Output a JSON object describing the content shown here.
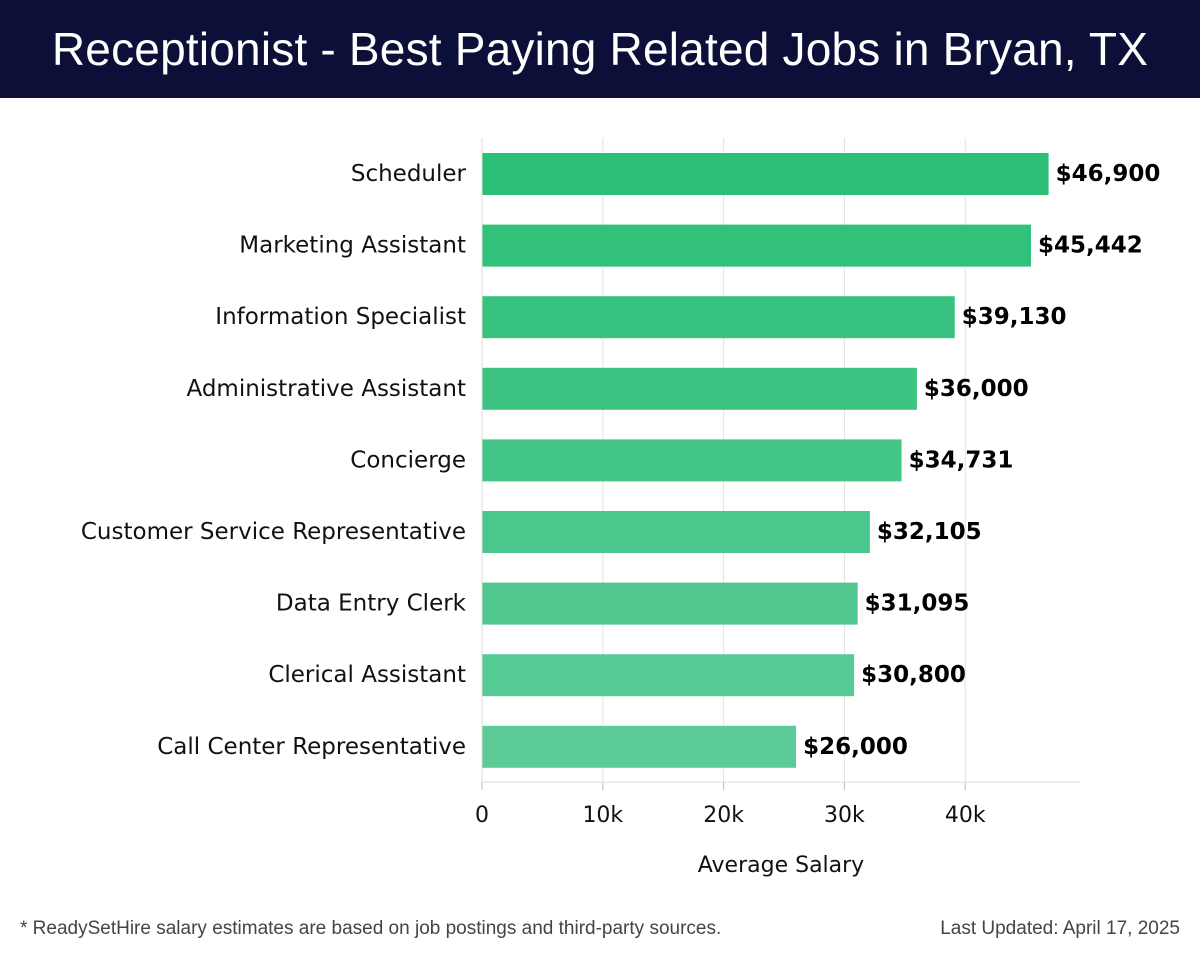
{
  "header": {
    "title": "Receptionist - Best Paying Related Jobs in Bryan, TX"
  },
  "chart_data": {
    "type": "bar",
    "orientation": "horizontal",
    "title": "Receptionist - Best Paying Related Jobs in Bryan, TX",
    "xlabel": "Average Salary",
    "ylabel": "",
    "categories": [
      "Scheduler",
      "Marketing Assistant",
      "Information Specialist",
      "Administrative Assistant",
      "Concierge",
      "Customer Service Representative",
      "Data Entry Clerk",
      "Clerical Assistant",
      "Call Center Representative"
    ],
    "values": [
      46900,
      45442,
      39130,
      36000,
      34731,
      32105,
      31095,
      30800,
      26000
    ],
    "value_labels": [
      "$46,900",
      "$45,442",
      "$39,130",
      "$36,000",
      "$34,731",
      "$32,105",
      "$31,095",
      "$30,800",
      "$26,000"
    ],
    "xlim": [
      0,
      49500
    ],
    "xticks": [
      0,
      10000,
      20000,
      30000,
      40000
    ],
    "xtick_labels": [
      "0",
      "10k",
      "20k",
      "30k",
      "40k"
    ],
    "grid": true,
    "bar_color_start": "#2bbf77",
    "bar_color_end": "#5ccb98"
  },
  "footer": {
    "note": "* ReadySetHire salary estimates are based on job postings and third-party sources.",
    "updated": "Last Updated: April 17, 2025"
  }
}
